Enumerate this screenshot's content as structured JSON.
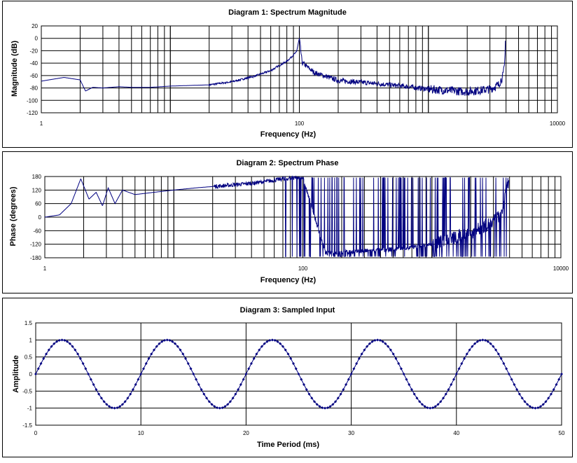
{
  "colors": {
    "series": "#000080",
    "grid": "#000000",
    "background": "#ffffff"
  },
  "chart_data": [
    {
      "type": "line",
      "title": "Diagram 1:  Spectrum Magnitude",
      "xlabel": "Frequency (Hz)",
      "ylabel": "Magnitude (dB)",
      "xscale": "log",
      "xlim": [
        1,
        10000
      ],
      "ylim": [
        -120,
        20
      ],
      "xticks": [
        "1",
        "100",
        "10000"
      ],
      "yticks": [
        "20",
        "0",
        "-20",
        "-40",
        "-60",
        "-80",
        "-100",
        "-120"
      ],
      "grid": true,
      "series": [
        {
          "x": [
            1,
            1.5,
            2,
            2.2,
            2.5,
            3,
            4,
            5,
            7,
            10,
            20,
            30,
            45,
            60,
            80,
            95,
            100,
            105,
            130,
            200,
            400,
            700,
            1000,
            2000,
            3000,
            3500,
            3800,
            3900,
            3950
          ],
          "values": [
            -69,
            -63,
            -67,
            -85,
            -79,
            -80,
            -78,
            -79,
            -79,
            -77,
            -75,
            -70,
            -61,
            -52,
            -37,
            -22,
            0,
            -39,
            -55,
            -68,
            -73,
            -78,
            -82,
            -86,
            -82,
            -75,
            -60,
            -40,
            -2
          ]
        }
      ]
    },
    {
      "type": "line",
      "title": "Diagram 2:  Spectrum Phase",
      "xlabel": "Frequency (Hz)",
      "ylabel": "Phase (degrees)",
      "xscale": "log",
      "xlim": [
        1,
        10000
      ],
      "ylim": [
        -180,
        180
      ],
      "xticks": [
        "1",
        "100",
        "10000"
      ],
      "yticks": [
        "180",
        "120",
        "60",
        "0",
        "-60",
        "-120",
        "-180"
      ],
      "grid": true,
      "series": [
        {
          "x": [
            1,
            1.3,
            1.6,
            1.9,
            2.2,
            2.5,
            2.8,
            3.1,
            3.5,
            4,
            5,
            7,
            10,
            15,
            25,
            40,
            55,
            70,
            100,
            150,
            300,
            600,
            1000,
            2000,
            3000,
            3500,
            3950
          ],
          "values": [
            0,
            10,
            60,
            170,
            80,
            110,
            50,
            130,
            60,
            120,
            100,
            110,
            120,
            130,
            140,
            150,
            160,
            170,
            175,
            -160,
            -150,
            -140,
            -120,
            -70,
            -20,
            20,
            170
          ]
        }
      ]
    },
    {
      "type": "scatter",
      "title": "Diagram 3:  Sampled Input",
      "xlabel": "Time Period (ms)",
      "ylabel": "Amplitude",
      "xlim": [
        0,
        50
      ],
      "ylim": [
        -1.5,
        1.5
      ],
      "xticks": [
        "0",
        "10",
        "20",
        "30",
        "40",
        "50"
      ],
      "yticks": [
        "1.5",
        "1",
        "0.5",
        "0",
        "-0.5",
        "-1",
        "-1.5"
      ],
      "grid": true,
      "series": [
        {
          "function": "sin",
          "frequency_hz": 100,
          "amplitude": 1,
          "sample_interval_ms": 0.25
        }
      ]
    }
  ]
}
